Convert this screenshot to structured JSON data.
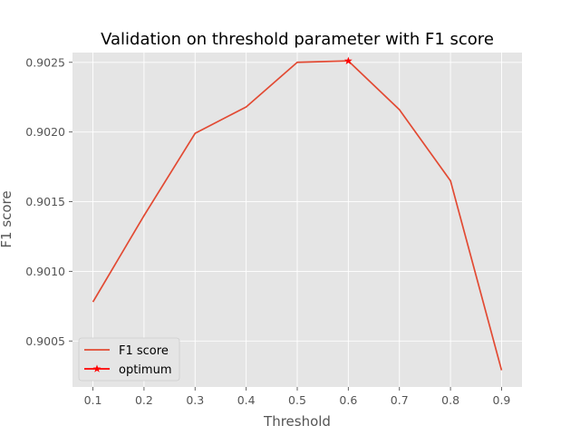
{
  "chart_data": {
    "type": "line",
    "title": "Validation on threshold parameter with F1 score",
    "xlabel": "Threshold",
    "ylabel": "F1 score",
    "xlim": [
      0.06,
      0.94
    ],
    "ylim": [
      0.90017,
      0.90257
    ],
    "x_ticks": [
      0.1,
      0.2,
      0.3,
      0.4,
      0.5,
      0.6,
      0.7,
      0.8,
      0.9
    ],
    "x_tick_labels": [
      "0.1",
      "0.2",
      "0.3",
      "0.4",
      "0.5",
      "0.6",
      "0.7",
      "0.8",
      "0.9"
    ],
    "y_ticks": [
      0.9005,
      0.901,
      0.9015,
      0.902,
      0.9025
    ],
    "y_tick_labels": [
      "0.9005",
      "0.9010",
      "0.9015",
      "0.9020",
      "0.9025"
    ],
    "grid": true,
    "legend_placement": "lower-left",
    "series": [
      {
        "name": "F1 score",
        "color": "#E24A33",
        "x": [
          0.1,
          0.2,
          0.3,
          0.4,
          0.5,
          0.6,
          0.7,
          0.8,
          0.9
        ],
        "y": [
          0.90078,
          0.9014,
          0.90199,
          0.90218,
          0.9025,
          0.90251,
          0.90216,
          0.90165,
          0.90029
        ]
      },
      {
        "name": "optimum",
        "color": "#FF0000",
        "marker": "star",
        "x": [
          0.6
        ],
        "y": [
          0.90251
        ]
      }
    ]
  }
}
